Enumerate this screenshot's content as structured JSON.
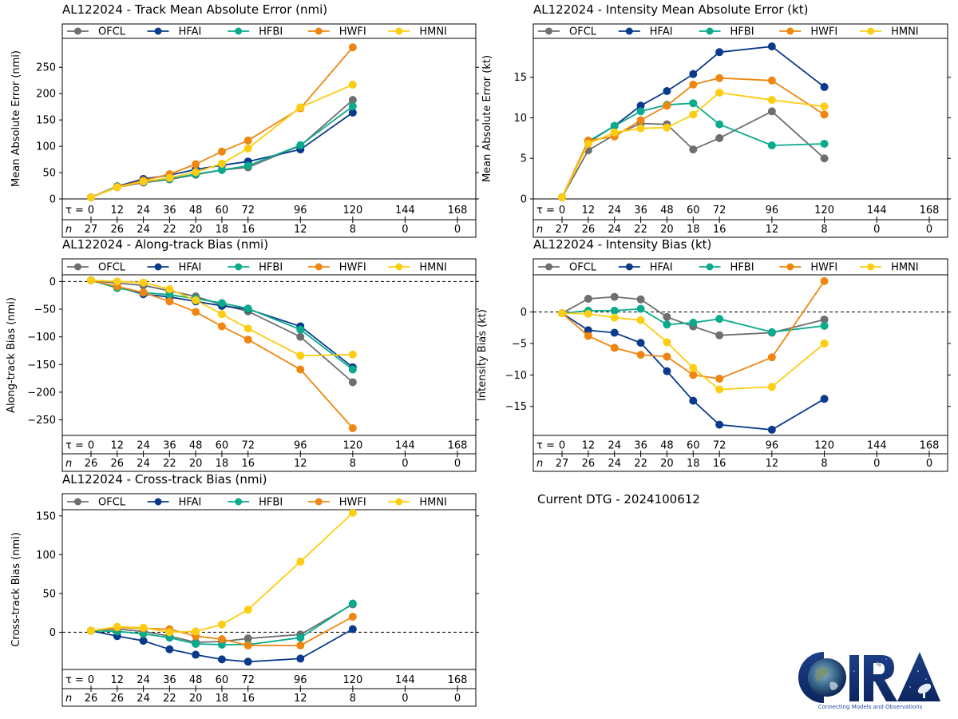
{
  "footer": {
    "current_dtg_label": "Current DTG - 2024100612",
    "logo_text": "CIRA",
    "logo_tagline": "Connecting Models and Observations"
  },
  "chart_data": [
    {
      "id": "track-mae",
      "type": "line",
      "title": "AL122024 - Track Mean Absolute Error (nmi)",
      "xlabel": "",
      "ylabel": "Mean Absolute Error (nmi)",
      "tau_label": "τ =",
      "n_label": "n",
      "x_ticks": [
        0,
        12,
        24,
        36,
        48,
        60,
        72,
        96,
        120,
        144,
        168
      ],
      "n_values": [
        27,
        26,
        24,
        22,
        20,
        18,
        16,
        12,
        8,
        0,
        0
      ],
      "y_ticks": [
        0,
        50,
        100,
        150,
        200,
        250
      ],
      "ylim": [
        0,
        305
      ],
      "zero_line": false,
      "legend_placement": "top",
      "series": [
        {
          "name": "OFCL",
          "color": "#6e6e6e",
          "x": [
            0,
            12,
            24,
            36,
            48,
            60,
            72,
            96,
            120
          ],
          "values": [
            3,
            22,
            31,
            37,
            46,
            55,
            60,
            101,
            188
          ]
        },
        {
          "name": "HFAI",
          "color": "#0a3a8c",
          "x": [
            0,
            12,
            24,
            36,
            48,
            60,
            72,
            96,
            120
          ],
          "values": [
            3,
            24,
            38,
            45,
            56,
            64,
            71,
            94,
            164
          ]
        },
        {
          "name": "HFBI",
          "color": "#0aab8c",
          "x": [
            0,
            12,
            24,
            36,
            48,
            60,
            72,
            96,
            120
          ],
          "values": [
            3,
            24,
            33,
            38,
            47,
            55,
            63,
            102,
            176
          ]
        },
        {
          "name": "HWFI",
          "color": "#ef8611",
          "x": [
            0,
            12,
            24,
            36,
            48,
            60,
            72,
            96,
            120
          ],
          "values": [
            3,
            23,
            35,
            47,
            66,
            90,
            111,
            172,
            288
          ]
        },
        {
          "name": "HMNI",
          "color": "#fdcd12",
          "x": [
            0,
            12,
            24,
            36,
            48,
            60,
            72,
            96,
            120
          ],
          "values": [
            3,
            22,
            33,
            40,
            51,
            67,
            96,
            174,
            217
          ]
        }
      ]
    },
    {
      "id": "intensity-mae",
      "type": "line",
      "title": "AL122024 - Intensity Mean Absolute Error (kt)",
      "xlabel": "",
      "ylabel": "Mean Absolute Error (kt)",
      "tau_label": "τ =",
      "n_label": "n",
      "x_ticks": [
        0,
        12,
        24,
        36,
        48,
        60,
        72,
        96,
        120,
        144,
        168
      ],
      "n_values": [
        27,
        26,
        24,
        22,
        20,
        18,
        16,
        12,
        8,
        0,
        0
      ],
      "y_ticks": [
        0,
        5,
        10,
        15
      ],
      "ylim": [
        0,
        19.8
      ],
      "zero_line": false,
      "legend_placement": "top",
      "series": [
        {
          "name": "OFCL",
          "color": "#6e6e6e",
          "x": [
            0,
            12,
            24,
            36,
            48,
            60,
            72,
            96,
            120
          ],
          "values": [
            0.2,
            6.0,
            7.9,
            9.3,
            9.2,
            6.1,
            7.5,
            10.8,
            5.0
          ]
        },
        {
          "name": "HFAI",
          "color": "#0a3a8c",
          "x": [
            0,
            12,
            24,
            36,
            48,
            60,
            72,
            96,
            120
          ],
          "values": [
            0.2,
            7.0,
            9.0,
            11.5,
            13.3,
            15.4,
            18.1,
            18.8,
            13.8
          ]
        },
        {
          "name": "HFBI",
          "color": "#0aab8c",
          "x": [
            0,
            12,
            24,
            36,
            48,
            60,
            72,
            96,
            120
          ],
          "values": [
            0.2,
            7.1,
            9.0,
            10.8,
            11.6,
            11.8,
            9.2,
            6.6,
            6.8
          ]
        },
        {
          "name": "HWFI",
          "color": "#ef8611",
          "x": [
            0,
            12,
            24,
            36,
            48,
            60,
            72,
            96,
            120
          ],
          "values": [
            0.2,
            7.2,
            7.7,
            9.7,
            11.5,
            14.1,
            14.9,
            14.6,
            10.4
          ]
        },
        {
          "name": "HMNI",
          "color": "#fdcd12",
          "x": [
            0,
            12,
            24,
            36,
            48,
            60,
            72,
            96,
            120
          ],
          "values": [
            0.2,
            6.8,
            8.2,
            8.7,
            8.8,
            10.4,
            13.1,
            12.2,
            11.4
          ]
        }
      ]
    },
    {
      "id": "along-track-bias",
      "type": "line",
      "title": "AL122024 - Along-track Bias (nmi)",
      "xlabel": "",
      "ylabel": "Along-track Bias (nmi)",
      "tau_label": "τ =",
      "n_label": "n",
      "x_ticks": [
        0,
        12,
        24,
        36,
        48,
        60,
        72,
        96,
        120,
        144,
        168
      ],
      "n_values": [
        26,
        26,
        24,
        22,
        20,
        18,
        16,
        12,
        8,
        0,
        0
      ],
      "y_ticks": [
        0,
        -50,
        -100,
        -150,
        -200,
        -250
      ],
      "ylim": [
        -278,
        12
      ],
      "zero_line": true,
      "legend_placement": "top",
      "series": [
        {
          "name": "OFCL",
          "color": "#6e6e6e",
          "x": [
            0,
            12,
            24,
            36,
            48,
            60,
            72,
            96,
            120
          ],
          "values": [
            2,
            -3,
            -7,
            -17,
            -27,
            -42,
            -54,
            -100,
            -182
          ]
        },
        {
          "name": "HFAI",
          "color": "#0a3a8c",
          "x": [
            0,
            12,
            24,
            36,
            48,
            60,
            72,
            96,
            120
          ],
          "values": [
            2,
            -10,
            -23,
            -28,
            -36,
            -44,
            -50,
            -81,
            -155
          ]
        },
        {
          "name": "HFBI",
          "color": "#0aab8c",
          "x": [
            0,
            12,
            24,
            36,
            48,
            60,
            72,
            96,
            120
          ],
          "values": [
            2,
            -12,
            -20,
            -24,
            -31,
            -39,
            -49,
            -87,
            -159
          ]
        },
        {
          "name": "HWFI",
          "color": "#ef8611",
          "x": [
            0,
            12,
            24,
            36,
            48,
            60,
            72,
            96,
            120
          ],
          "values": [
            2,
            -9,
            -20,
            -36,
            -55,
            -81,
            -105,
            -159,
            -265
          ]
        },
        {
          "name": "HMNI",
          "color": "#fdcd12",
          "x": [
            0,
            12,
            24,
            36,
            48,
            60,
            72,
            96,
            120
          ],
          "values": [
            2,
            0,
            -2,
            -14,
            -34,
            -59,
            -85,
            -134,
            -132
          ]
        }
      ]
    },
    {
      "id": "intensity-bias",
      "type": "line",
      "title": "AL122024 - Intensity Bias (kt)",
      "xlabel": "",
      "ylabel": "Intensity Bias (kt)",
      "tau_label": "τ =",
      "n_label": "n",
      "x_ticks": [
        0,
        12,
        24,
        36,
        48,
        60,
        72,
        96,
        120,
        144,
        168
      ],
      "n_values": [
        27,
        26,
        24,
        22,
        20,
        18,
        16,
        12,
        8,
        0,
        0
      ],
      "y_ticks": [
        0,
        -5,
        -10,
        -15
      ],
      "ylim": [
        -19.6,
        5.9
      ],
      "zero_line": true,
      "legend_placement": "top",
      "series": [
        {
          "name": "OFCL",
          "color": "#6e6e6e",
          "x": [
            0,
            12,
            24,
            36,
            48,
            60,
            72,
            96,
            120
          ],
          "values": [
            -0.2,
            2.1,
            2.4,
            2.0,
            -0.8,
            -2.3,
            -3.7,
            -3.3,
            -1.2
          ]
        },
        {
          "name": "HFAI",
          "color": "#0a3a8c",
          "x": [
            0,
            12,
            24,
            36,
            48,
            60,
            72,
            96,
            120
          ],
          "values": [
            -0.2,
            -2.9,
            -3.3,
            -4.9,
            -9.4,
            -14.1,
            -17.9,
            -18.7,
            -13.8
          ]
        },
        {
          "name": "HFBI",
          "color": "#0aab8c",
          "x": [
            0,
            12,
            24,
            36,
            48,
            60,
            72,
            96,
            120
          ],
          "values": [
            -0.2,
            0.2,
            0.2,
            0.5,
            -2.0,
            -1.7,
            -1.1,
            -3.2,
            -2.2
          ]
        },
        {
          "name": "HWFI",
          "color": "#ef8611",
          "x": [
            0,
            12,
            24,
            36,
            48,
            60,
            72,
            96,
            120
          ],
          "values": [
            -0.2,
            -3.8,
            -5.7,
            -6.8,
            -7.1,
            -10.0,
            -10.6,
            -7.2,
            4.9
          ]
        },
        {
          "name": "HMNI",
          "color": "#fdcd12",
          "x": [
            0,
            12,
            24,
            36,
            48,
            60,
            72,
            96,
            120
          ],
          "values": [
            -0.2,
            -0.3,
            -0.9,
            -1.3,
            -4.8,
            -8.9,
            -12.3,
            -11.9,
            -5.0
          ]
        }
      ]
    },
    {
      "id": "cross-track-bias",
      "type": "line",
      "title": "AL122024 - Cross-track Bias (nmi)",
      "xlabel": "",
      "ylabel": "Cross-track Bias (nmi)",
      "tau_label": "τ =",
      "n_label": "n",
      "x_ticks": [
        0,
        12,
        24,
        36,
        48,
        60,
        72,
        96,
        120,
        144,
        168
      ],
      "n_values": [
        26,
        26,
        24,
        22,
        20,
        18,
        16,
        12,
        8,
        0,
        0
      ],
      "y_ticks": [
        0,
        50,
        100,
        150
      ],
      "ylim": [
        -48,
        158
      ],
      "zero_line": true,
      "legend_placement": "top",
      "series": [
        {
          "name": "OFCL",
          "color": "#6e6e6e",
          "x": [
            0,
            12,
            24,
            36,
            48,
            60,
            72,
            96,
            120
          ],
          "values": [
            2,
            4,
            1,
            -5,
            -13,
            -12,
            -8,
            -3,
            36
          ]
        },
        {
          "name": "HFAI",
          "color": "#0a3a8c",
          "x": [
            0,
            12,
            24,
            36,
            48,
            60,
            72,
            96,
            120
          ],
          "values": [
            2,
            -5,
            -11,
            -22,
            -29,
            -35,
            -38,
            -34,
            4
          ]
        },
        {
          "name": "HFBI",
          "color": "#0aab8c",
          "x": [
            0,
            12,
            24,
            36,
            48,
            60,
            72,
            96,
            120
          ],
          "values": [
            2,
            1,
            -2,
            -7,
            -15,
            -16,
            -16,
            -7,
            37
          ]
        },
        {
          "name": "HWFI",
          "color": "#ef8611",
          "x": [
            0,
            12,
            24,
            36,
            48,
            60,
            72,
            96,
            120
          ],
          "values": [
            2,
            6,
            5,
            4,
            -5,
            -9,
            -17,
            -17,
            20
          ]
        },
        {
          "name": "HMNI",
          "color": "#fdcd12",
          "x": [
            0,
            12,
            24,
            36,
            48,
            60,
            72,
            96,
            120
          ],
          "values": [
            2,
            7,
            6,
            0,
            1,
            10,
            29,
            91,
            154
          ]
        }
      ]
    }
  ]
}
